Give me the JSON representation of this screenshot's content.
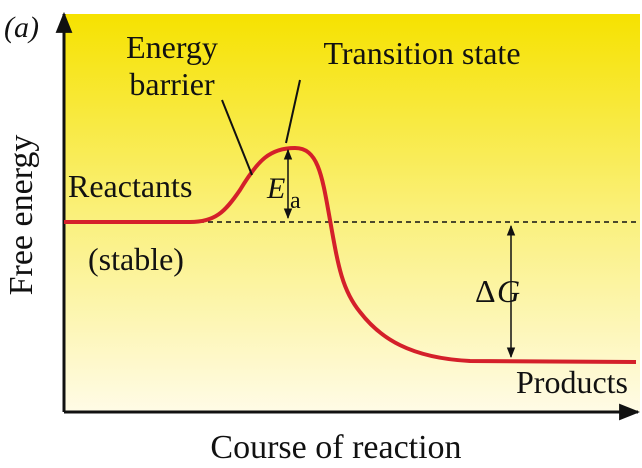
{
  "panel_label": "(a)",
  "axes": {
    "y_label": "Free energy",
    "x_label": "Course of reaction"
  },
  "labels": {
    "energy_barrier": [
      "Energy",
      "barrier"
    ],
    "transition_state": "Transition state",
    "reactants": "Reactants",
    "stable": "(stable)",
    "activation_energy": {
      "symbol": "E",
      "subscript": "a"
    },
    "delta_g": {
      "delta": "Δ",
      "symbol": "G"
    },
    "products": "Products"
  }
}
